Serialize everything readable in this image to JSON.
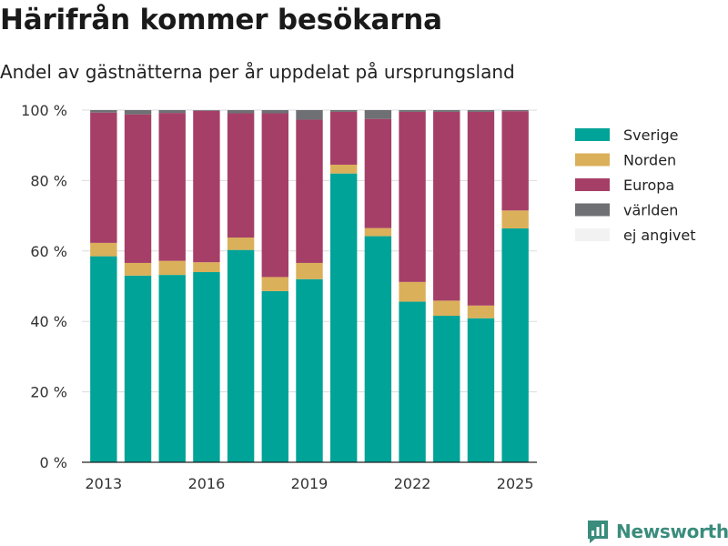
{
  "colors": {
    "Sverige": "#00a398",
    "Norden": "#dbb05a",
    "Europa": "#a63f68",
    "världen": "#6e7073",
    "ej angivet": "#f2f2f2",
    "grid": "#dcdcdc",
    "logo": "#3a8c7c"
  },
  "brand": {
    "name": "Newsworthy",
    "icon": "newsworthy-logo-icon"
  },
  "chart_data": {
    "type": "bar",
    "stacked": true,
    "title": "Härifrån kommer besökarna",
    "subtitle": "Andel av gästnätterna per år uppdelat på ursprungsland",
    "xlabel": "",
    "ylabel": "",
    "categories": [
      "2013",
      "2014",
      "2015",
      "2016",
      "2017",
      "2018",
      "2019",
      "2020",
      "2021",
      "2022",
      "2023",
      "2024",
      "2025"
    ],
    "x_tick_labels": [
      "2013",
      "2016",
      "2019",
      "2022",
      "2025"
    ],
    "y_ticks": [
      0,
      20,
      40,
      60,
      80,
      100
    ],
    "y_tick_labels": [
      "0 %",
      "20 %",
      "40 %",
      "60 %",
      "80 %",
      "100 %"
    ],
    "ylim": [
      0,
      100
    ],
    "grid": true,
    "legend_position": "right",
    "series": [
      {
        "name": "Sverige",
        "values": [
          58.5,
          53.0,
          53.2,
          54.0,
          60.3,
          48.6,
          52.0,
          82.0,
          64.2,
          45.6,
          41.6,
          40.9,
          66.4
        ]
      },
      {
        "name": "Norden",
        "values": [
          3.8,
          3.6,
          4.0,
          2.8,
          3.5,
          4.0,
          4.6,
          2.5,
          2.3,
          5.6,
          4.3,
          3.6,
          5.1
        ]
      },
      {
        "name": "Europa",
        "values": [
          37.0,
          42.2,
          42.0,
          43.0,
          35.3,
          46.5,
          40.7,
          15.0,
          31.0,
          48.3,
          53.6,
          55.0,
          28.2
        ]
      },
      {
        "name": "världen",
        "values": [
          0.7,
          1.2,
          0.8,
          0.2,
          0.9,
          0.9,
          2.7,
          0.5,
          2.5,
          0.5,
          0.5,
          0.5,
          0.3
        ]
      },
      {
        "name": "ej angivet",
        "values": [
          0,
          0,
          0,
          0,
          0,
          0,
          0,
          0,
          0,
          0,
          0,
          0,
          0
        ]
      }
    ]
  }
}
